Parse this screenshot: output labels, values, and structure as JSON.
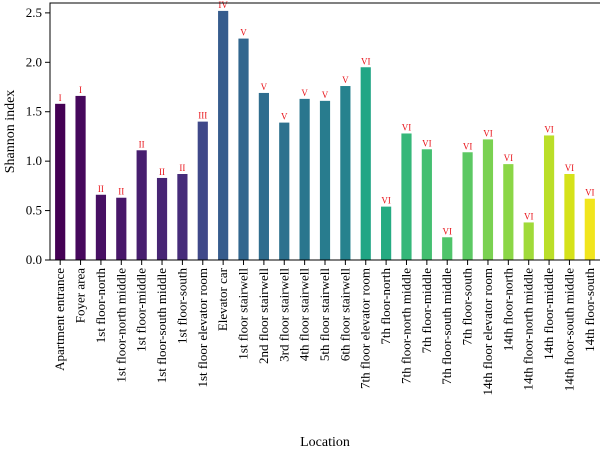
{
  "chart_data": {
    "type": "bar",
    "xlabel": "Location",
    "ylabel": "Shannon index",
    "ylim": [
      0,
      2.6
    ],
    "yticks": [
      "0.0",
      "0.5",
      "1.0",
      "1.5",
      "2.0",
      "2.5"
    ],
    "label_color": "#e8141b",
    "categories": [
      "Apartment entrance",
      "Foyer area",
      "1st floor-north",
      "1st floor-north middle",
      "1st floor-middle",
      "1st floor-south middle",
      "1st floor-south",
      "1st floor elevator room",
      "Elevator car",
      "1st floor stairwell",
      "2nd floor stairwell",
      "3rd floor stairwell",
      "4th floor stairwell",
      "5th floor stairwell",
      "6th floor stairwell",
      "7th floor elevator room",
      "7th floor-north",
      "7th floor-north middle",
      "7th floor-middle",
      "7th floor-south middle",
      "7th floor-south",
      "14th floor elevator room",
      "14th floor-north",
      "14th floor-north middle",
      "14th floor-middle",
      "14th floor-south middle",
      "14th floor-south"
    ],
    "values": [
      1.58,
      1.66,
      0.66,
      0.63,
      1.11,
      0.83,
      0.87,
      1.4,
      2.52,
      2.24,
      1.69,
      1.39,
      1.63,
      1.61,
      1.76,
      1.95,
      0.54,
      1.28,
      1.12,
      0.23,
      1.09,
      1.22,
      0.97,
      0.38,
      1.26,
      0.87,
      0.62
    ],
    "bar_labels": [
      "I",
      "I",
      "II",
      "II",
      "II",
      "II",
      "II",
      "III",
      "IV",
      "V",
      "V",
      "V",
      "V",
      "V",
      "V",
      "VI",
      "VI",
      "VI",
      "VI",
      "VI",
      "VI",
      "VI",
      "VI",
      "VI",
      "VI",
      "VI",
      "VI"
    ],
    "colors": [
      "#440154",
      "#46085c",
      "#471063",
      "#481769",
      "#471e6f",
      "#472574",
      "#462c7a",
      "#3f4889",
      "#365c8d",
      "#31668e",
      "#2f6d8e",
      "#2d718e",
      "#2a768e",
      "#287c8e",
      "#26828e",
      "#21a685",
      "#25ab82",
      "#35b779",
      "#44bf70",
      "#4fc46a",
      "#5cc863",
      "#7ad151",
      "#8bd646",
      "#a0da39",
      "#bade28",
      "#d5e21a",
      "#f1e51d"
    ]
  }
}
